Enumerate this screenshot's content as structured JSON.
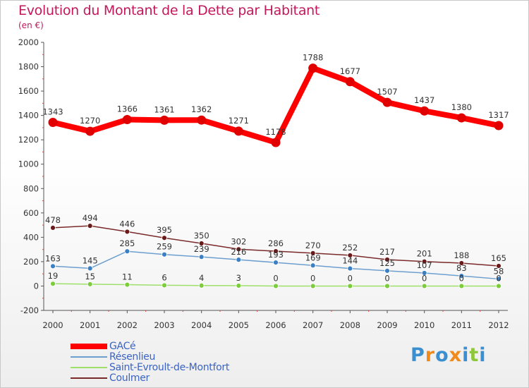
{
  "chart_data": {
    "type": "line",
    "title": "Evolution du Montant de la Dette par Habitant",
    "subtitle": "(en €)",
    "x": [
      "2000",
      "2001",
      "2002",
      "2003",
      "2004",
      "2005",
      "2006",
      "2007",
      "2008",
      "2009",
      "2010",
      "2011",
      "2012"
    ],
    "ylim": [
      -200,
      2000
    ],
    "yticks": [
      "-200",
      "0",
      "200",
      "400",
      "600",
      "800",
      "1000",
      "1200",
      "1400",
      "1600",
      "1800",
      "2000"
    ],
    "grid": false,
    "legend_position": "bottom-left",
    "series": [
      {
        "name": "GACé",
        "color": "#ff0000",
        "point_color": "#e00000",
        "values": [
          1343,
          1270,
          1366,
          1361,
          1362,
          1271,
          1178,
          1788,
          1677,
          1507,
          1437,
          1380,
          1317
        ],
        "labels": [
          "1343",
          "1270",
          "1366",
          "1361",
          "1362",
          "1271",
          "1178",
          "1788",
          "1677",
          "1507",
          "1437",
          "1380",
          "1317"
        ]
      },
      {
        "name": "Résenlieu",
        "color": "#6d9fce",
        "point_color": "#3b7fc4",
        "values": [
          163,
          145,
          285,
          259,
          239,
          216,
          193,
          169,
          144,
          125,
          107,
          83,
          58
        ],
        "labels": [
          "163",
          "145",
          "285",
          "259",
          "239",
          "216",
          "193",
          "169",
          "144",
          "125",
          "107",
          "83",
          "58"
        ]
      },
      {
        "name": "Saint-Evroult-de-Montfort",
        "color": "#9ee06a",
        "point_color": "#7ccc3c",
        "values": [
          19,
          15,
          11,
          6,
          4,
          3,
          0,
          0,
          0,
          0,
          0,
          0,
          0
        ],
        "labels": [
          "19",
          "15",
          "11",
          "6",
          "4",
          "3",
          "0",
          "0",
          "0",
          "0",
          "0",
          "0",
          "0"
        ]
      },
      {
        "name": "Coulmer",
        "color": "#7a2a2a",
        "point_color": "#6b1a1a",
        "values": [
          478,
          494,
          446,
          395,
          350,
          302,
          286,
          270,
          252,
          217,
          201,
          188,
          165
        ],
        "labels": [
          "478",
          "494",
          "446",
          "395",
          "350",
          "302",
          "286",
          "270",
          "252",
          "217",
          "201",
          "188",
          "165"
        ]
      }
    ]
  },
  "logo": {
    "text": "Proxiti",
    "letters": [
      "P",
      "r",
      "o",
      "x",
      "i",
      "t",
      "i"
    ],
    "colors": [
      "#3a8fd0",
      "#f08a1c",
      "#3a8fd0",
      "#f08a1c",
      "#3a8fd0",
      "#8fc63c",
      "#3a8fd0"
    ]
  }
}
